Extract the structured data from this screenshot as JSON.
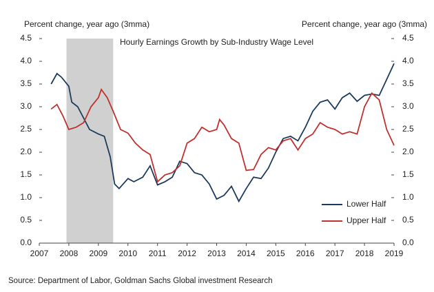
{
  "chart_data": {
    "type": "line",
    "title": "Hourly Earnings Growth by Sub-Industry Wage Level",
    "y_label": "Percent change, year ago (3mma)",
    "y2_label": "Percent change, year ago (3mma)",
    "source": "Source: Department of Labor, Goldman Sachs Global investment Research",
    "xlim": [
      2007,
      2019
    ],
    "xticks": [
      2007,
      2008,
      2009,
      2010,
      2011,
      2012,
      2013,
      2014,
      2015,
      2016,
      2017,
      2018,
      2019
    ],
    "ylim": [
      0,
      4.5
    ],
    "yticks": [
      {
        "value": 0,
        "label": "0.0"
      },
      0.5,
      {
        "value": 1,
        "label": "1.0"
      },
      1.5,
      {
        "value": 2,
        "label": "2.0"
      },
      2.5,
      {
        "value": 3,
        "label": "3.0"
      },
      3.5,
      {
        "value": 4,
        "label": "4.0"
      },
      4.5
    ],
    "y2lim": [
      0,
      4.5
    ],
    "y2ticks": [
      {
        "value": 0,
        "label": "0.0"
      },
      0.5,
      {
        "value": 1,
        "label": "1.0"
      },
      1.5,
      {
        "value": 2,
        "label": "2.0"
      },
      2.5,
      {
        "value": 3,
        "label": "3.0"
      },
      3.5,
      {
        "value": 4,
        "label": "4.0"
      },
      4.5
    ],
    "shaded_region": [
      2007.92,
      2009.5
    ],
    "shade_color": "#d0d0d0",
    "legend": "lower right",
    "series": [
      {
        "name": "Lower Half",
        "color": "#1c3a5c",
        "x": [
          2007.4,
          2007.6,
          2007.75,
          2008.0,
          2008.1,
          2008.3,
          2008.5,
          2008.7,
          2009.0,
          2009.2,
          2009.4,
          2009.55,
          2009.7,
          2010.0,
          2010.2,
          2010.5,
          2010.75,
          2011.0,
          2011.25,
          2011.5,
          2011.75,
          2012.0,
          2012.25,
          2012.5,
          2012.75,
          2013.0,
          2013.25,
          2013.5,
          2013.75,
          2014.0,
          2014.25,
          2014.5,
          2014.75,
          2015.0,
          2015.25,
          2015.5,
          2015.75,
          2016.0,
          2016.25,
          2016.5,
          2016.75,
          2017.0,
          2017.25,
          2017.5,
          2017.75,
          2018.0,
          2018.25,
          2018.5,
          2018.75,
          2019.0
        ],
        "values": [
          3.5,
          3.73,
          3.65,
          3.45,
          3.1,
          3.0,
          2.75,
          2.5,
          2.4,
          2.35,
          1.9,
          1.3,
          1.2,
          1.42,
          1.35,
          1.45,
          1.7,
          1.28,
          1.35,
          1.45,
          1.8,
          1.75,
          1.55,
          1.5,
          1.3,
          0.97,
          1.05,
          1.25,
          0.92,
          1.2,
          1.45,
          1.42,
          1.65,
          2.0,
          2.3,
          2.35,
          2.25,
          2.55,
          2.9,
          3.1,
          3.15,
          2.95,
          3.2,
          3.3,
          3.12,
          3.25,
          3.28,
          3.25,
          3.6,
          3.95
        ]
      },
      {
        "name": "Upper Half",
        "color": "#c0302e",
        "x": [
          2007.4,
          2007.6,
          2007.8,
          2008.0,
          2008.25,
          2008.5,
          2008.75,
          2009.0,
          2009.1,
          2009.3,
          2009.5,
          2009.75,
          2010.0,
          2010.25,
          2010.5,
          2010.75,
          2011.0,
          2011.25,
          2011.5,
          2011.75,
          2012.0,
          2012.25,
          2012.5,
          2012.75,
          2013.0,
          2013.1,
          2013.25,
          2013.5,
          2013.75,
          2014.0,
          2014.25,
          2014.5,
          2014.75,
          2015.0,
          2015.25,
          2015.5,
          2015.75,
          2016.0,
          2016.25,
          2016.5,
          2016.75,
          2017.0,
          2017.25,
          2017.5,
          2017.75,
          2018.0,
          2018.25,
          2018.5,
          2018.75,
          2019.0
        ],
        "values": [
          2.95,
          3.05,
          2.8,
          2.5,
          2.55,
          2.65,
          3.0,
          3.2,
          3.38,
          3.2,
          2.9,
          2.5,
          2.42,
          2.2,
          2.05,
          1.95,
          1.35,
          1.5,
          1.55,
          1.7,
          2.2,
          2.3,
          2.55,
          2.45,
          2.5,
          2.72,
          2.6,
          2.3,
          2.2,
          1.6,
          1.62,
          1.95,
          2.1,
          2.05,
          2.25,
          2.3,
          2.05,
          2.3,
          2.4,
          2.65,
          2.55,
          2.5,
          2.4,
          2.45,
          2.4,
          3.0,
          3.3,
          3.15,
          2.5,
          2.15
        ]
      }
    ]
  }
}
